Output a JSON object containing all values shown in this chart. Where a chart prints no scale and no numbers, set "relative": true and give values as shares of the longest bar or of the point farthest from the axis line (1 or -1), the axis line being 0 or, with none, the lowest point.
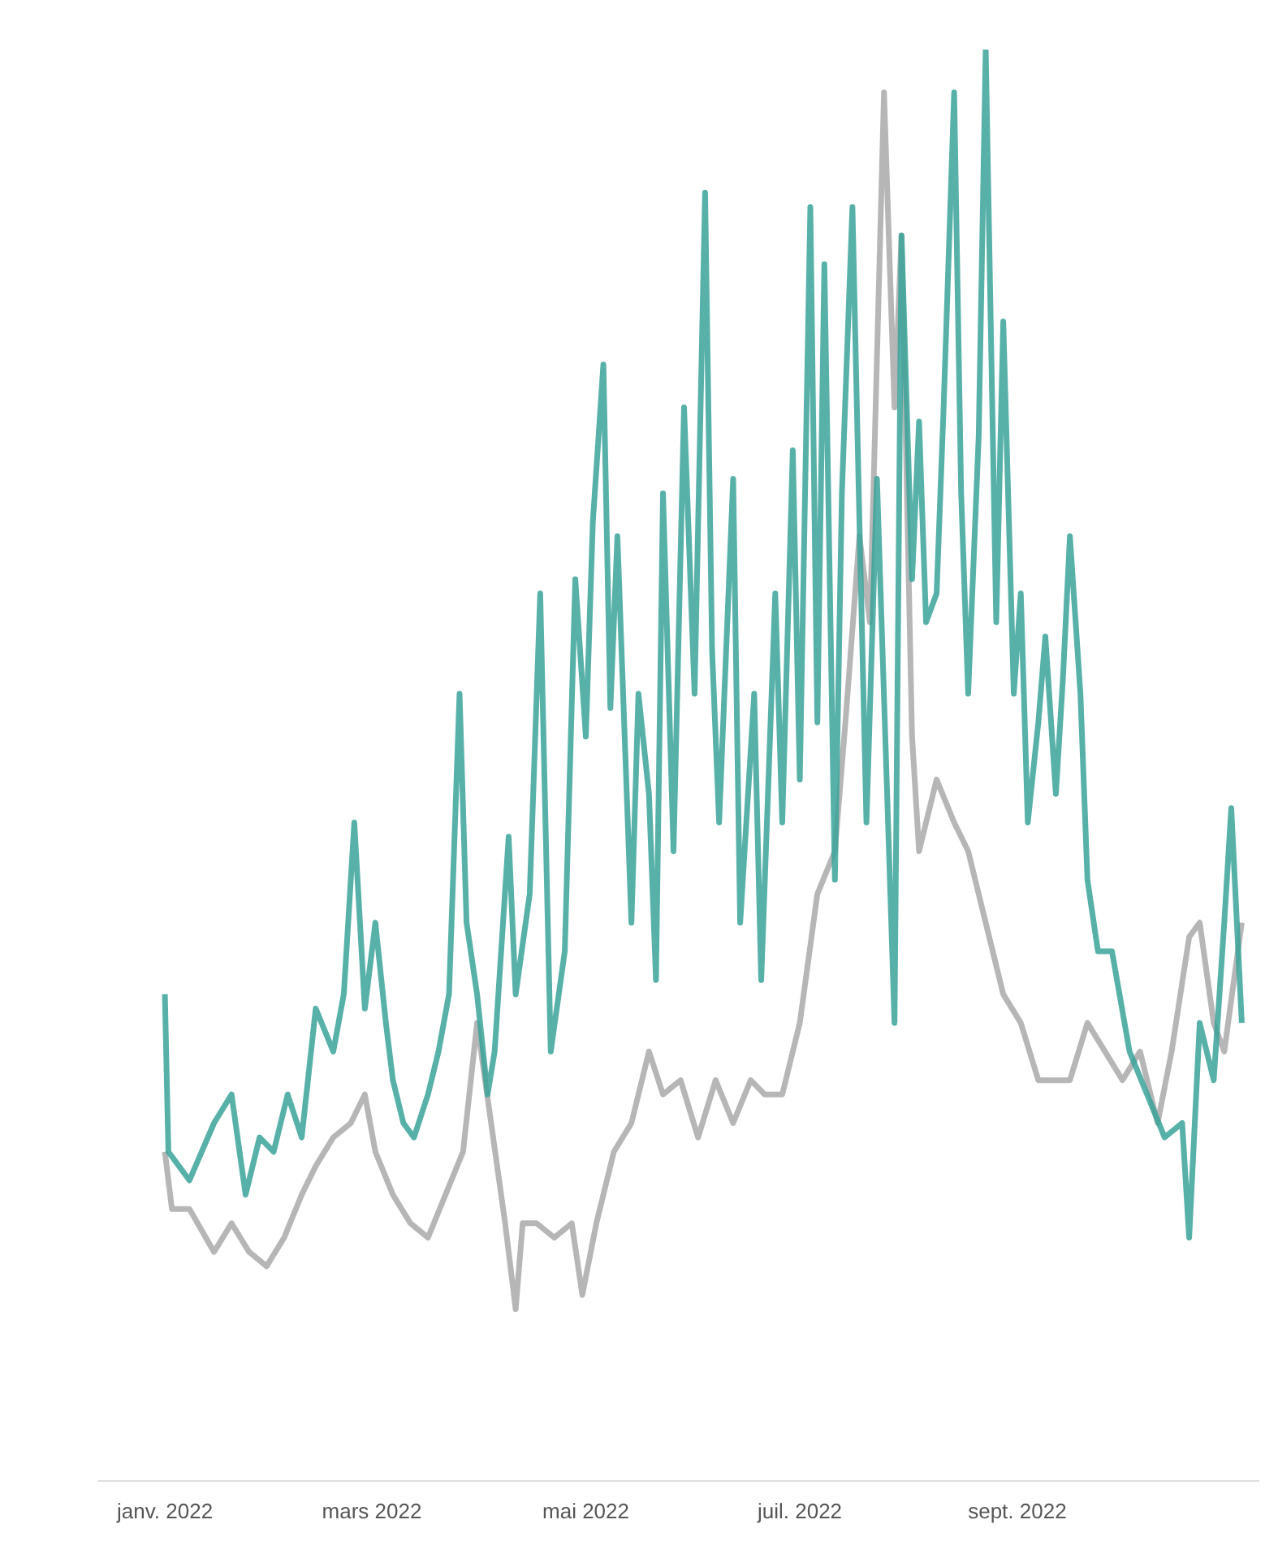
{
  "chart_data": {
    "type": "line",
    "relative": true,
    "line_style": "solid",
    "marker": "none",
    "xlim": [
      "2021-12-13",
      "2022-11-09"
    ],
    "xticks": [
      {
        "value": "2022-01-01",
        "label": "janv. 2022"
      },
      {
        "value": "2022-03-01",
        "label": "mars 2022"
      },
      {
        "value": "2022-05-01",
        "label": "mai 2022"
      },
      {
        "value": "2022-07-01",
        "label": "juil. 2022"
      },
      {
        "value": "2022-09-01",
        "label": "sept. 2022"
      }
    ],
    "series": [
      {
        "color": "#a9a9a9",
        "x": [
          "2022-01-01",
          "2022-01-03",
          "2022-01-08",
          "2022-01-15",
          "2022-01-20",
          "2022-01-25",
          "2022-01-30",
          "2022-02-04",
          "2022-02-09",
          "2022-02-13",
          "2022-02-18",
          "2022-02-23",
          "2022-02-27",
          "2022-03-02",
          "2022-03-07",
          "2022-03-12",
          "2022-03-17",
          "2022-03-22",
          "2022-03-27",
          "2022-03-31",
          "2022-04-04",
          "2022-04-08",
          "2022-04-11",
          "2022-04-13",
          "2022-04-17",
          "2022-04-22",
          "2022-04-27",
          "2022-04-30",
          "2022-05-04",
          "2022-05-09",
          "2022-05-14",
          "2022-05-19",
          "2022-05-23",
          "2022-05-28",
          "2022-06-02",
          "2022-06-07",
          "2022-06-12",
          "2022-06-17",
          "2022-06-21",
          "2022-06-26",
          "2022-07-01",
          "2022-07-06",
          "2022-07-11",
          "2022-07-14",
          "2022-07-18",
          "2022-07-21",
          "2022-07-25",
          "2022-07-28",
          "2022-07-30",
          "2022-08-02",
          "2022-08-04",
          "2022-08-09",
          "2022-08-14",
          "2022-08-18",
          "2022-08-23",
          "2022-08-28",
          "2022-09-02",
          "2022-09-07",
          "2022-09-12",
          "2022-09-16",
          "2022-09-21",
          "2022-09-26",
          "2022-10-01",
          "2022-10-06",
          "2022-10-11",
          "2022-10-15",
          "2022-10-20",
          "2022-10-23",
          "2022-10-27",
          "2022-10-30",
          "2022-11-04"
        ],
        "values": [
          0.23,
          0.19,
          0.19,
          0.16,
          0.18,
          0.16,
          0.15,
          0.17,
          0.2,
          0.22,
          0.24,
          0.25,
          0.27,
          0.23,
          0.2,
          0.18,
          0.17,
          0.2,
          0.23,
          0.32,
          0.25,
          0.18,
          0.12,
          0.18,
          0.18,
          0.17,
          0.18,
          0.13,
          0.18,
          0.23,
          0.25,
          0.3,
          0.27,
          0.28,
          0.24,
          0.28,
          0.25,
          0.28,
          0.27,
          0.27,
          0.32,
          0.41,
          0.44,
          0.53,
          0.66,
          0.6,
          0.97,
          0.75,
          0.87,
          0.52,
          0.44,
          0.49,
          0.46,
          0.44,
          0.39,
          0.34,
          0.32,
          0.28,
          0.28,
          0.28,
          0.32,
          0.3,
          0.28,
          0.3,
          0.25,
          0.3,
          0.38,
          0.39,
          0.32,
          0.3,
          0.39
        ]
      },
      {
        "color": "#3aa39a",
        "x": [
          "2022-01-01",
          "2022-01-02",
          "2022-01-08",
          "2022-01-15",
          "2022-01-20",
          "2022-01-24",
          "2022-01-28",
          "2022-02-01",
          "2022-02-05",
          "2022-02-09",
          "2022-02-13",
          "2022-02-18",
          "2022-02-21",
          "2022-02-24",
          "2022-02-27",
          "2022-03-02",
          "2022-03-05",
          "2022-03-07",
          "2022-03-10",
          "2022-03-13",
          "2022-03-17",
          "2022-03-20",
          "2022-03-23",
          "2022-03-26",
          "2022-03-28",
          "2022-03-31",
          "2022-04-03",
          "2022-04-05",
          "2022-04-09",
          "2022-04-11",
          "2022-04-15",
          "2022-04-18",
          "2022-04-21",
          "2022-04-25",
          "2022-04-28",
          "2022-05-01",
          "2022-05-03",
          "2022-05-06",
          "2022-05-08",
          "2022-05-10",
          "2022-05-14",
          "2022-05-16",
          "2022-05-19",
          "2022-05-21",
          "2022-05-23",
          "2022-05-26",
          "2022-05-29",
          "2022-06-01",
          "2022-06-04",
          "2022-06-06",
          "2022-06-08",
          "2022-06-12",
          "2022-06-14",
          "2022-06-18",
          "2022-06-20",
          "2022-06-24",
          "2022-06-26",
          "2022-06-29",
          "2022-07-01",
          "2022-07-04",
          "2022-07-06",
          "2022-07-08",
          "2022-07-11",
          "2022-07-13",
          "2022-07-16",
          "2022-07-18",
          "2022-07-20",
          "2022-07-23",
          "2022-07-28",
          "2022-07-30",
          "2022-08-02",
          "2022-08-04",
          "2022-08-06",
          "2022-08-09",
          "2022-08-11",
          "2022-08-14",
          "2022-08-16",
          "2022-08-18",
          "2022-08-21",
          "2022-08-23",
          "2022-08-26",
          "2022-08-28",
          "2022-08-31",
          "2022-09-02",
          "2022-09-04",
          "2022-09-07",
          "2022-09-09",
          "2022-09-12",
          "2022-09-14",
          "2022-09-16",
          "2022-09-19",
          "2022-09-21",
          "2022-09-24",
          "2022-09-28",
          "2022-10-03",
          "2022-10-08",
          "2022-10-13",
          "2022-10-18",
          "2022-10-20",
          "2022-10-23",
          "2022-10-27",
          "2022-10-30",
          "2022-11-01",
          "2022-11-04"
        ],
        "values": [
          0.34,
          0.23,
          0.21,
          0.25,
          0.27,
          0.2,
          0.24,
          0.23,
          0.27,
          0.24,
          0.33,
          0.3,
          0.34,
          0.46,
          0.33,
          0.39,
          0.32,
          0.28,
          0.25,
          0.24,
          0.27,
          0.3,
          0.34,
          0.55,
          0.39,
          0.34,
          0.27,
          0.3,
          0.45,
          0.34,
          0.41,
          0.62,
          0.3,
          0.37,
          0.63,
          0.52,
          0.67,
          0.78,
          0.54,
          0.66,
          0.39,
          0.55,
          0.48,
          0.35,
          0.69,
          0.44,
          0.75,
          0.55,
          0.9,
          0.58,
          0.46,
          0.7,
          0.39,
          0.55,
          0.35,
          0.62,
          0.46,
          0.72,
          0.49,
          0.89,
          0.53,
          0.85,
          0.42,
          0.69,
          0.89,
          0.67,
          0.46,
          0.7,
          0.32,
          0.87,
          0.63,
          0.74,
          0.6,
          0.62,
          0.75,
          0.97,
          0.69,
          0.55,
          0.73,
          1.0,
          0.6,
          0.81,
          0.55,
          0.62,
          0.46,
          0.53,
          0.59,
          0.48,
          0.56,
          0.66,
          0.55,
          0.42,
          0.37,
          0.37,
          0.3,
          0.27,
          0.24,
          0.25,
          0.17,
          0.32,
          0.28,
          0.39,
          0.47,
          0.32
        ]
      }
    ]
  }
}
